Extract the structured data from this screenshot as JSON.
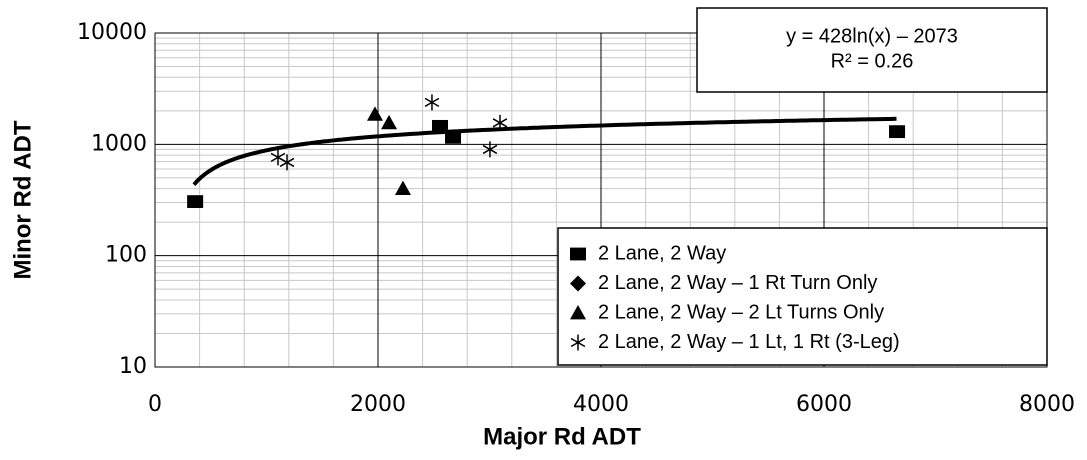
{
  "chart_data": {
    "type": "scatter",
    "x_label": "Major Rd ADT",
    "y_label": "Minor Rd ADT",
    "xlim": [
      0,
      8000
    ],
    "xticks": [
      0,
      2000,
      4000,
      6000,
      8000
    ],
    "ylim": [
      10,
      10000
    ],
    "yticks": [
      10,
      100,
      1000,
      10000
    ],
    "log_y": true,
    "grid": true,
    "minor_grid": true,
    "legend": "lower right",
    "series": [
      {
        "name": "2 Lane, 2 Way",
        "marker": "square",
        "color": "#000000",
        "x": [
          360,
          2556,
          2673,
          6655
        ],
        "values": [
          306,
          1450,
          1156,
          1300
        ]
      },
      {
        "name": "2 Lane, 2 Way – 1 Rt Turn Only",
        "marker": "diamond",
        "color": "#000000",
        "x": [],
        "values": []
      },
      {
        "name": "2 Lane, 2 Way – 2 Lt Turns Only",
        "marker": "triangle",
        "color": "#000000",
        "x": [
          1973,
          2099,
          2224
        ],
        "values": [
          1860,
          1560,
          400
        ]
      },
      {
        "name": "2 Lane, 2 Way – 1 Lt, 1 Rt (3-Leg)",
        "marker": "star",
        "color": "#000000",
        "x": [
          1103,
          1184,
          2484,
          3004,
          3094
        ],
        "values": [
          764,
          688,
          2380,
          900,
          1560
        ]
      }
    ],
    "trendline": {
      "a": 428,
      "b": -2073,
      "x_range": [
        350,
        6650
      ],
      "color": "#000000"
    },
    "annotation": [
      "y = 428ln(x) – 2073",
      "R² = 0.26"
    ]
  }
}
